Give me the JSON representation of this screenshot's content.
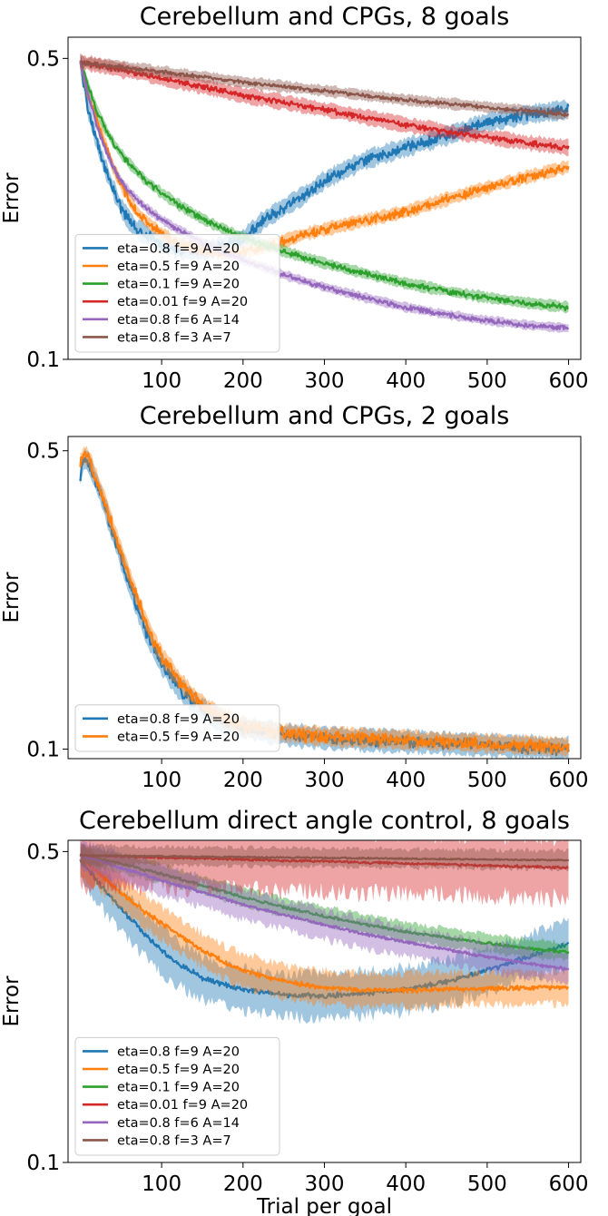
{
  "chart_data": [
    {
      "type": "line",
      "title": "Cerebellum and CPGs, 8 goals",
      "xlabel": "",
      "ylabel": "Error",
      "yscale": "log",
      "ylim": [
        0.1,
        0.56
      ],
      "xlim": [
        -15,
        615
      ],
      "xticks": [
        100,
        200,
        300,
        400,
        500,
        600
      ],
      "yticks": [
        0.5,
        0.1
      ],
      "ytick_labels": [
        "0.5",
        "0.1"
      ],
      "legend": "lower-left",
      "series": [
        {
          "name": "eta=0.8 f=9 A=20",
          "color": "#1f77b4",
          "noise": 0.022,
          "band": 0.05,
          "x": [
            0,
            5,
            10,
            20,
            30,
            40,
            50,
            60,
            70,
            80,
            100,
            120,
            140,
            160,
            180,
            200,
            225,
            250,
            275,
            300,
            325,
            350,
            400,
            450,
            500,
            550,
            600
          ],
          "y": [
            0.49,
            0.43,
            0.38,
            0.32,
            0.28,
            0.25,
            0.225,
            0.21,
            0.2,
            0.195,
            0.185,
            0.18,
            0.178,
            0.18,
            0.185,
            0.19,
            0.21,
            0.225,
            0.24,
            0.26,
            0.275,
            0.29,
            0.31,
            0.33,
            0.355,
            0.37,
            0.38
          ]
        },
        {
          "name": "eta=0.5 f=9 A=20",
          "color": "#ff7f0e",
          "noise": 0.018,
          "band": 0.035,
          "x": [
            0,
            5,
            10,
            20,
            30,
            40,
            50,
            60,
            70,
            80,
            100,
            120,
            140,
            160,
            180,
            200,
            225,
            250,
            275,
            300,
            350,
            400,
            450,
            500,
            550,
            600
          ],
          "y": [
            0.49,
            0.45,
            0.41,
            0.36,
            0.32,
            0.28,
            0.255,
            0.235,
            0.22,
            0.21,
            0.195,
            0.186,
            0.181,
            0.178,
            0.177,
            0.178,
            0.182,
            0.188,
            0.195,
            0.2,
            0.21,
            0.22,
            0.235,
            0.25,
            0.265,
            0.28
          ]
        },
        {
          "name": "eta=0.1 f=9 A=20",
          "color": "#2ca02c",
          "noise": 0.012,
          "band": 0.03,
          "x": [
            0,
            10,
            20,
            30,
            40,
            50,
            60,
            80,
            100,
            120,
            140,
            160,
            180,
            200,
            250,
            300,
            350,
            400,
            450,
            500,
            550,
            600
          ],
          "y": [
            0.49,
            0.43,
            0.38,
            0.345,
            0.32,
            0.3,
            0.285,
            0.26,
            0.243,
            0.229,
            0.217,
            0.207,
            0.199,
            0.192,
            0.178,
            0.167,
            0.158,
            0.15,
            0.144,
            0.139,
            0.135,
            0.132
          ]
        },
        {
          "name": "eta=0.01 f=9 A=20",
          "color": "#d62728",
          "noise": 0.012,
          "band": 0.04,
          "x": [
            0,
            50,
            100,
            150,
            200,
            250,
            300,
            350,
            400,
            450,
            500,
            550,
            600
          ],
          "y": [
            0.49,
            0.47,
            0.45,
            0.43,
            0.41,
            0.395,
            0.38,
            0.365,
            0.35,
            0.338,
            0.328,
            0.318,
            0.31
          ]
        },
        {
          "name": "eta=0.8 f=6 A=14",
          "color": "#9467bd",
          "noise": 0.01,
          "band": 0.025,
          "x": [
            0,
            10,
            20,
            30,
            40,
            50,
            60,
            80,
            100,
            120,
            140,
            160,
            180,
            200,
            250,
            300,
            350,
            400,
            450,
            500,
            550,
            600
          ],
          "y": [
            0.49,
            0.41,
            0.35,
            0.31,
            0.28,
            0.26,
            0.245,
            0.225,
            0.211,
            0.2,
            0.191,
            0.183,
            0.176,
            0.17,
            0.157,
            0.147,
            0.139,
            0.132,
            0.127,
            0.123,
            0.12,
            0.118
          ]
        },
        {
          "name": "eta=0.8 f=3 A=7",
          "color": "#8c564b",
          "noise": 0.008,
          "band": 0.03,
          "x": [
            0,
            100,
            200,
            300,
            400,
            500,
            600
          ],
          "y": [
            0.49,
            0.465,
            0.44,
            0.42,
            0.4,
            0.385,
            0.37
          ]
        }
      ]
    },
    {
      "type": "line",
      "title": "Cerebellum and CPGs, 2 goals",
      "xlabel": "",
      "ylabel": "Error",
      "yscale": "log",
      "ylim": [
        0.095,
        0.54
      ],
      "xlim": [
        -15,
        615
      ],
      "xticks": [
        100,
        200,
        300,
        400,
        500,
        600
      ],
      "yticks": [
        0.5,
        0.1
      ],
      "ytick_labels": [
        "0.5",
        "0.1"
      ],
      "legend": "lower-left",
      "series": [
        {
          "name": "eta=0.8 f=9 A=20",
          "color": "#1f77b4",
          "noise": 0.025,
          "band": 0.06,
          "x": [
            0,
            5,
            10,
            20,
            30,
            40,
            50,
            60,
            70,
            80,
            90,
            100,
            120,
            140,
            160,
            180,
            200,
            250,
            300,
            350,
            400,
            450,
            500,
            550,
            600
          ],
          "y": [
            0.44,
            0.48,
            0.47,
            0.42,
            0.37,
            0.32,
            0.28,
            0.245,
            0.215,
            0.19,
            0.172,
            0.158,
            0.14,
            0.128,
            0.12,
            0.115,
            0.112,
            0.108,
            0.106,
            0.105,
            0.104,
            0.103,
            0.102,
            0.101,
            0.1
          ]
        },
        {
          "name": "eta=0.5 f=9 A=20",
          "color": "#ff7f0e",
          "noise": 0.025,
          "band": 0.05,
          "x": [
            0,
            5,
            10,
            20,
            30,
            40,
            50,
            60,
            70,
            80,
            90,
            100,
            120,
            140,
            160,
            180,
            200,
            250,
            300,
            350,
            400,
            450,
            500,
            550,
            600
          ],
          "y": [
            0.47,
            0.49,
            0.48,
            0.43,
            0.38,
            0.33,
            0.29,
            0.255,
            0.225,
            0.2,
            0.18,
            0.165,
            0.146,
            0.132,
            0.123,
            0.117,
            0.113,
            0.109,
            0.107,
            0.106,
            0.105,
            0.104,
            0.103,
            0.102,
            0.101
          ]
        }
      ]
    },
    {
      "type": "line",
      "title": "Cerebellum direct angle control, 8 goals",
      "xlabel": "Trial per goal",
      "ylabel": "Error",
      "yscale": "log",
      "ylim": [
        0.1,
        0.53
      ],
      "xlim": [
        -15,
        615
      ],
      "xticks": [
        100,
        200,
        300,
        400,
        500,
        600
      ],
      "yticks": [
        0.5,
        0.1
      ],
      "ytick_labels": [
        "0.5",
        "0.1"
      ],
      "legend": "lower-left",
      "series": [
        {
          "name": "eta=0.8 f=9 A=20",
          "color": "#1f77b4",
          "noise": 0.01,
          "band": 0.12,
          "x": [
            0,
            20,
            40,
            60,
            80,
            100,
            120,
            150,
            180,
            200,
            250,
            300,
            350,
            400,
            450,
            500,
            550,
            600
          ],
          "y": [
            0.48,
            0.43,
            0.39,
            0.355,
            0.325,
            0.3,
            0.28,
            0.26,
            0.25,
            0.245,
            0.238,
            0.237,
            0.24,
            0.245,
            0.255,
            0.27,
            0.29,
            0.31
          ]
        },
        {
          "name": "eta=0.5 f=9 A=20",
          "color": "#ff7f0e",
          "noise": 0.01,
          "band": 0.09,
          "x": [
            0,
            20,
            40,
            60,
            80,
            100,
            120,
            150,
            180,
            200,
            250,
            300,
            350,
            400,
            450,
            500,
            550,
            600
          ],
          "y": [
            0.48,
            0.45,
            0.42,
            0.39,
            0.365,
            0.345,
            0.325,
            0.3,
            0.28,
            0.27,
            0.255,
            0.247,
            0.244,
            0.244,
            0.245,
            0.246,
            0.247,
            0.248
          ]
        },
        {
          "name": "eta=0.1 f=9 A=20",
          "color": "#2ca02c",
          "noise": 0.006,
          "band": 0.05,
          "x": [
            0,
            50,
            100,
            150,
            200,
            250,
            300,
            350,
            400,
            450,
            500,
            550,
            600
          ],
          "y": [
            0.49,
            0.47,
            0.445,
            0.42,
            0.395,
            0.375,
            0.358,
            0.343,
            0.33,
            0.32,
            0.311,
            0.303,
            0.297
          ]
        },
        {
          "name": "eta=0.01 f=9 A=20",
          "color": "#d62728",
          "noise": 0.005,
          "band": 0.16,
          "x": [
            0,
            100,
            200,
            300,
            400,
            500,
            600
          ],
          "y": [
            0.49,
            0.485,
            0.48,
            0.475,
            0.47,
            0.465,
            0.46
          ]
        },
        {
          "name": "eta=0.8 f=6 A=14",
          "color": "#9467bd",
          "noise": 0.006,
          "band": 0.08,
          "x": [
            0,
            50,
            100,
            150,
            200,
            250,
            300,
            350,
            400,
            450,
            500,
            550,
            600
          ],
          "y": [
            0.49,
            0.46,
            0.43,
            0.405,
            0.38,
            0.36,
            0.342,
            0.326,
            0.313,
            0.301,
            0.29,
            0.28,
            0.272
          ]
        },
        {
          "name": "eta=0.8 f=3 A=7",
          "color": "#8c564b",
          "noise": 0.003,
          "band": 0.05,
          "x": [
            0,
            100,
            200,
            300,
            400,
            500,
            600
          ],
          "y": [
            0.49,
            0.488,
            0.486,
            0.484,
            0.482,
            0.48,
            0.478
          ]
        }
      ]
    }
  ]
}
